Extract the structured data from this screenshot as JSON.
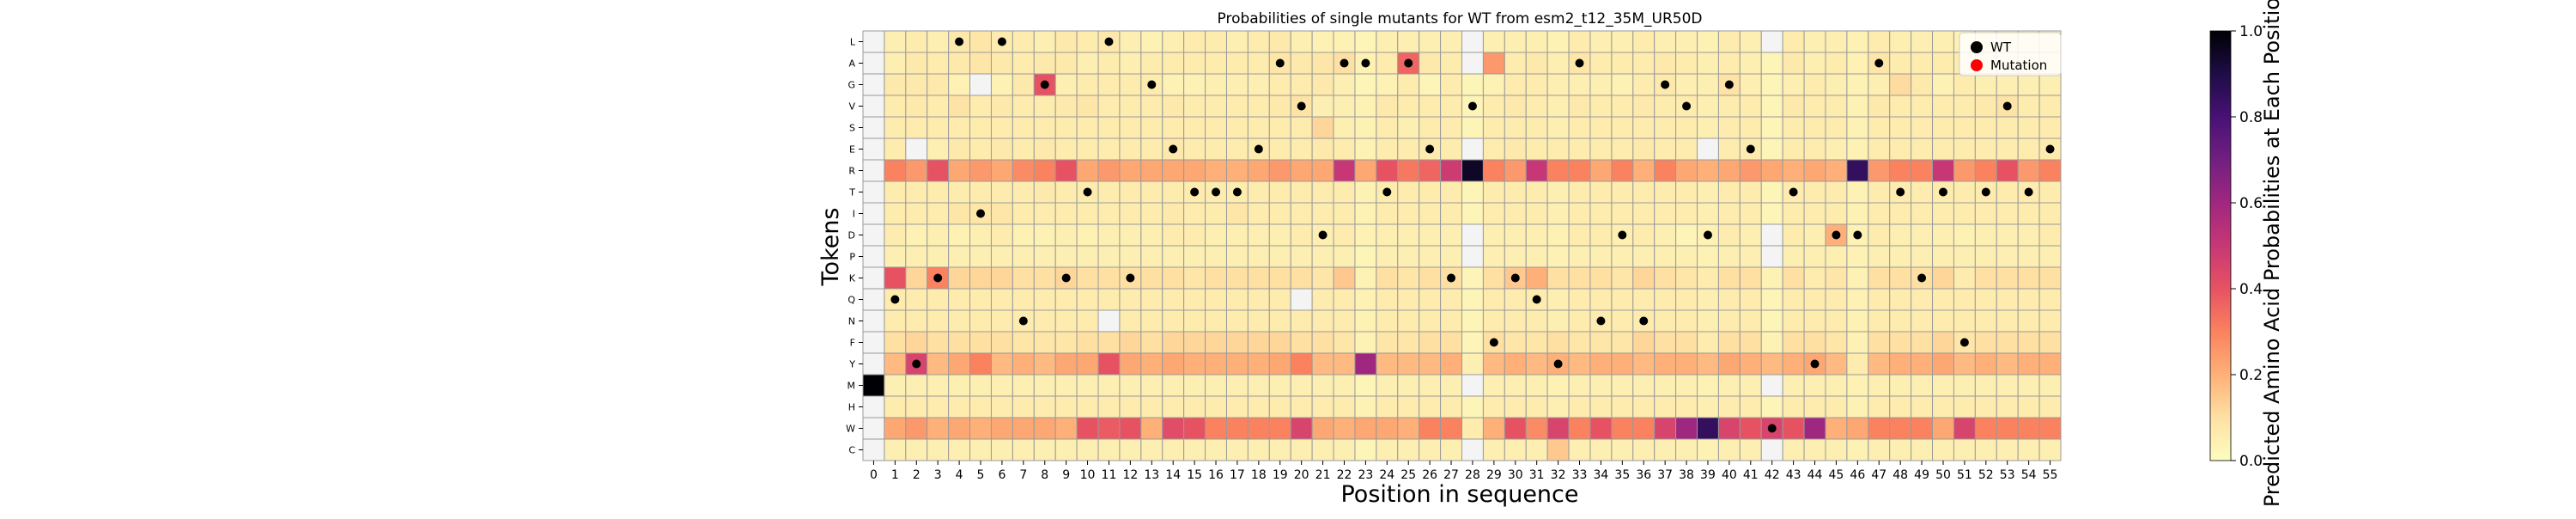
{
  "chart_data": {
    "type": "heatmap",
    "title": "Probabilities of single mutants for WT from esm2_t12_35M_UR50D",
    "xlabel": "Position in sequence",
    "ylabel": "Tokens",
    "x": [
      0,
      1,
      2,
      3,
      4,
      5,
      6,
      7,
      8,
      9,
      10,
      11,
      12,
      13,
      14,
      15,
      16,
      17,
      18,
      19,
      20,
      21,
      22,
      23,
      24,
      25,
      26,
      27,
      28,
      29,
      30,
      31,
      32,
      33,
      34,
      35,
      36,
      37,
      38,
      39,
      40,
      41,
      42,
      43,
      44,
      45,
      46,
      47,
      48,
      49,
      50,
      51,
      52,
      53,
      54,
      55
    ],
    "tokens": [
      "L",
      "A",
      "G",
      "V",
      "S",
      "E",
      "R",
      "T",
      "I",
      "D",
      "P",
      "K",
      "Q",
      "N",
      "F",
      "Y",
      "M",
      "H",
      "W",
      "C"
    ],
    "wild_type": [
      "M",
      "Q",
      "Y",
      "K",
      "L",
      "I",
      "L",
      "N",
      "G",
      "K",
      "T",
      "L",
      "K",
      "G",
      "E",
      "T",
      "T",
      "T",
      "E",
      "A",
      "V",
      "D",
      "A",
      "A",
      "T",
      "A",
      "E",
      "K",
      "V",
      "F",
      "K",
      "Q",
      "Y",
      "A",
      "N",
      "D",
      "N",
      "G",
      "V",
      "D",
      "G",
      "E",
      "W",
      "T",
      "Y",
      "D",
      "D",
      "A",
      "T",
      "K",
      "T",
      "F",
      "T",
      "V",
      "T",
      "E"
    ],
    "mutations": [],
    "legend": {
      "wt": "WT",
      "mutation": "Mutation",
      "position": "top-right"
    },
    "colorbar": {
      "label": "Predicted Amino Acid Probabilities at Each Position",
      "min": 0.0,
      "max": 1.0,
      "ticks": [
        "0.0",
        "0.2",
        "0.4",
        "0.6",
        "0.8",
        "1.0"
      ]
    },
    "colors": {
      "wt_marker": "#000000",
      "mutation_marker": "#ff0000",
      "cell_border": "#9a9a9a",
      "near_zero": "#f4f4f4"
    },
    "grid": true,
    "values": [
      [
        0.01,
        0.05,
        0.06,
        0.05,
        0.07,
        0.08,
        0.06,
        0.06,
        0.05,
        0.07,
        0.06,
        0.07,
        0.05,
        0.04,
        0.05,
        0.06,
        0.06,
        0.05,
        0.06,
        0.07,
        0.05,
        0.04,
        0.04,
        0.03,
        0.05,
        0.05,
        0.05,
        0.05,
        0.02,
        0.05,
        0.05,
        0.05,
        0.04,
        0.06,
        0.05,
        0.05,
        0.06,
        0.05,
        0.05,
        0.04,
        0.06,
        0.05,
        0.02,
        0.06,
        0.05,
        0.05,
        0.04,
        0.06,
        0.05,
        0.05,
        0.05,
        0.04,
        0.05,
        0.06,
        0.06,
        0.05
      ],
      [
        0.01,
        0.05,
        0.07,
        0.06,
        0.07,
        0.08,
        0.07,
        0.06,
        0.07,
        0.07,
        0.05,
        0.06,
        0.05,
        0.06,
        0.06,
        0.06,
        0.06,
        0.06,
        0.06,
        0.08,
        0.07,
        0.08,
        0.1,
        0.04,
        0.06,
        0.36,
        0.07,
        0.06,
        0.02,
        0.25,
        0.06,
        0.07,
        0.05,
        0.08,
        0.06,
        0.06,
        0.06,
        0.07,
        0.06,
        0.05,
        0.06,
        0.05,
        0.03,
        0.07,
        0.05,
        0.06,
        0.04,
        0.08,
        0.06,
        0.06,
        0.06,
        0.06,
        0.06,
        0.06,
        0.07,
        0.05
      ],
      [
        0.01,
        0.07,
        0.07,
        0.07,
        0.04,
        0.02,
        0.04,
        0.07,
        0.4,
        0.05,
        0.06,
        0.06,
        0.06,
        0.06,
        0.04,
        0.04,
        0.05,
        0.05,
        0.05,
        0.06,
        0.06,
        0.07,
        0.05,
        0.03,
        0.04,
        0.06,
        0.03,
        0.06,
        0.03,
        0.04,
        0.06,
        0.06,
        0.05,
        0.05,
        0.05,
        0.04,
        0.06,
        0.07,
        0.05,
        0.05,
        0.09,
        0.05,
        0.03,
        0.05,
        0.06,
        0.05,
        0.04,
        0.05,
        0.11,
        0.07,
        0.04,
        0.06,
        0.05,
        0.05,
        0.05,
        0.05
      ],
      [
        0.01,
        0.06,
        0.07,
        0.06,
        0.09,
        0.06,
        0.07,
        0.06,
        0.06,
        0.07,
        0.08,
        0.06,
        0.06,
        0.06,
        0.07,
        0.06,
        0.06,
        0.06,
        0.06,
        0.07,
        0.09,
        0.05,
        0.05,
        0.04,
        0.07,
        0.06,
        0.06,
        0.06,
        0.03,
        0.06,
        0.07,
        0.06,
        0.05,
        0.07,
        0.06,
        0.06,
        0.07,
        0.06,
        0.06,
        0.05,
        0.06,
        0.06,
        0.03,
        0.07,
        0.06,
        0.06,
        0.04,
        0.07,
        0.06,
        0.06,
        0.06,
        0.06,
        0.07,
        0.09,
        0.06,
        0.06
      ],
      [
        0.01,
        0.06,
        0.06,
        0.06,
        0.06,
        0.06,
        0.06,
        0.06,
        0.06,
        0.06,
        0.06,
        0.06,
        0.06,
        0.06,
        0.06,
        0.06,
        0.06,
        0.06,
        0.06,
        0.06,
        0.06,
        0.12,
        0.05,
        0.04,
        0.06,
        0.05,
        0.06,
        0.06,
        0.03,
        0.06,
        0.06,
        0.06,
        0.05,
        0.06,
        0.06,
        0.06,
        0.06,
        0.06,
        0.06,
        0.05,
        0.06,
        0.06,
        0.03,
        0.06,
        0.06,
        0.06,
        0.04,
        0.06,
        0.06,
        0.06,
        0.06,
        0.06,
        0.06,
        0.06,
        0.06,
        0.06
      ],
      [
        0.01,
        0.06,
        0.02,
        0.05,
        0.07,
        0.06,
        0.07,
        0.06,
        0.07,
        0.06,
        0.06,
        0.06,
        0.06,
        0.06,
        0.07,
        0.06,
        0.06,
        0.06,
        0.06,
        0.06,
        0.06,
        0.07,
        0.06,
        0.04,
        0.06,
        0.06,
        0.06,
        0.06,
        0.02,
        0.06,
        0.07,
        0.06,
        0.06,
        0.06,
        0.06,
        0.06,
        0.07,
        0.06,
        0.06,
        0.02,
        0.06,
        0.06,
        0.03,
        0.06,
        0.06,
        0.05,
        0.04,
        0.06,
        0.06,
        0.06,
        0.06,
        0.06,
        0.06,
        0.06,
        0.06,
        0.06
      ],
      [
        0.01,
        0.3,
        0.25,
        0.4,
        0.22,
        0.25,
        0.22,
        0.28,
        0.3,
        0.4,
        0.22,
        0.25,
        0.22,
        0.22,
        0.22,
        0.22,
        0.2,
        0.2,
        0.22,
        0.25,
        0.22,
        0.22,
        0.5,
        0.22,
        0.4,
        0.32,
        0.36,
        0.48,
        0.95,
        0.3,
        0.25,
        0.5,
        0.3,
        0.3,
        0.22,
        0.3,
        0.2,
        0.3,
        0.22,
        0.2,
        0.22,
        0.25,
        0.22,
        0.2,
        0.22,
        0.2,
        0.85,
        0.25,
        0.3,
        0.3,
        0.5,
        0.25,
        0.3,
        0.4,
        0.25,
        0.3
      ],
      [
        0.01,
        0.06,
        0.06,
        0.06,
        0.06,
        0.06,
        0.06,
        0.06,
        0.07,
        0.06,
        0.06,
        0.06,
        0.06,
        0.06,
        0.06,
        0.06,
        0.06,
        0.06,
        0.06,
        0.06,
        0.06,
        0.06,
        0.06,
        0.04,
        0.06,
        0.06,
        0.06,
        0.06,
        0.03,
        0.06,
        0.06,
        0.06,
        0.05,
        0.06,
        0.06,
        0.06,
        0.06,
        0.06,
        0.06,
        0.05,
        0.06,
        0.06,
        0.03,
        0.06,
        0.06,
        0.06,
        0.04,
        0.06,
        0.06,
        0.06,
        0.06,
        0.06,
        0.06,
        0.06,
        0.06,
        0.06
      ],
      [
        0.01,
        0.06,
        0.06,
        0.06,
        0.08,
        0.08,
        0.08,
        0.06,
        0.06,
        0.06,
        0.06,
        0.06,
        0.06,
        0.06,
        0.07,
        0.06,
        0.06,
        0.08,
        0.06,
        0.06,
        0.06,
        0.06,
        0.06,
        0.04,
        0.06,
        0.06,
        0.06,
        0.06,
        0.03,
        0.06,
        0.06,
        0.06,
        0.05,
        0.06,
        0.06,
        0.06,
        0.06,
        0.06,
        0.06,
        0.05,
        0.06,
        0.06,
        0.03,
        0.06,
        0.06,
        0.06,
        0.04,
        0.06,
        0.06,
        0.06,
        0.06,
        0.06,
        0.06,
        0.06,
        0.06,
        0.06
      ],
      [
        0.01,
        0.06,
        0.04,
        0.05,
        0.04,
        0.05,
        0.06,
        0.04,
        0.04,
        0.05,
        0.04,
        0.05,
        0.05,
        0.05,
        0.06,
        0.06,
        0.05,
        0.05,
        0.05,
        0.05,
        0.06,
        0.05,
        0.06,
        0.04,
        0.05,
        0.05,
        0.05,
        0.05,
        0.02,
        0.05,
        0.05,
        0.05,
        0.04,
        0.06,
        0.06,
        0.05,
        0.06,
        0.05,
        0.03,
        0.04,
        0.06,
        0.05,
        0.02,
        0.06,
        0.05,
        0.2,
        0.04,
        0.06,
        0.05,
        0.05,
        0.05,
        0.04,
        0.05,
        0.05,
        0.05,
        0.06
      ],
      [
        0.01,
        0.05,
        0.05,
        0.05,
        0.05,
        0.05,
        0.05,
        0.05,
        0.05,
        0.05,
        0.05,
        0.05,
        0.05,
        0.05,
        0.05,
        0.05,
        0.05,
        0.05,
        0.05,
        0.05,
        0.05,
        0.05,
        0.05,
        0.03,
        0.05,
        0.05,
        0.05,
        0.05,
        0.02,
        0.05,
        0.05,
        0.05,
        0.04,
        0.05,
        0.05,
        0.05,
        0.05,
        0.05,
        0.05,
        0.04,
        0.05,
        0.05,
        0.02,
        0.05,
        0.05,
        0.05,
        0.04,
        0.05,
        0.05,
        0.05,
        0.05,
        0.05,
        0.05,
        0.05,
        0.05,
        0.05
      ],
      [
        0.01,
        0.4,
        0.12,
        0.3,
        0.12,
        0.12,
        0.12,
        0.1,
        0.1,
        0.12,
        0.1,
        0.1,
        0.1,
        0.1,
        0.1,
        0.08,
        0.1,
        0.1,
        0.1,
        0.1,
        0.1,
        0.08,
        0.15,
        0.04,
        0.1,
        0.08,
        0.1,
        0.1,
        0.03,
        0.1,
        0.15,
        0.2,
        0.1,
        0.1,
        0.1,
        0.08,
        0.12,
        0.1,
        0.08,
        0.06,
        0.1,
        0.1,
        0.04,
        0.1,
        0.06,
        0.08,
        0.04,
        0.1,
        0.1,
        0.1,
        0.12,
        0.06,
        0.1,
        0.1,
        0.1,
        0.1
      ],
      [
        0.01,
        0.06,
        0.06,
        0.06,
        0.06,
        0.06,
        0.06,
        0.06,
        0.06,
        0.06,
        0.06,
        0.06,
        0.06,
        0.06,
        0.06,
        0.06,
        0.06,
        0.06,
        0.06,
        0.06,
        0.02,
        0.06,
        0.06,
        0.04,
        0.06,
        0.06,
        0.06,
        0.06,
        0.03,
        0.06,
        0.06,
        0.06,
        0.05,
        0.06,
        0.06,
        0.06,
        0.06,
        0.06,
        0.06,
        0.05,
        0.06,
        0.06,
        0.03,
        0.06,
        0.06,
        0.06,
        0.04,
        0.06,
        0.06,
        0.06,
        0.06,
        0.06,
        0.06,
        0.06,
        0.06,
        0.06
      ],
      [
        0.01,
        0.06,
        0.06,
        0.06,
        0.06,
        0.06,
        0.06,
        0.06,
        0.06,
        0.06,
        0.06,
        0.02,
        0.06,
        0.06,
        0.06,
        0.06,
        0.06,
        0.06,
        0.06,
        0.06,
        0.06,
        0.06,
        0.06,
        0.04,
        0.06,
        0.06,
        0.06,
        0.06,
        0.03,
        0.06,
        0.06,
        0.06,
        0.05,
        0.06,
        0.06,
        0.06,
        0.06,
        0.06,
        0.06,
        0.05,
        0.06,
        0.06,
        0.03,
        0.06,
        0.06,
        0.06,
        0.04,
        0.06,
        0.06,
        0.06,
        0.06,
        0.06,
        0.06,
        0.06,
        0.06,
        0.06
      ],
      [
        0.01,
        0.1,
        0.12,
        0.1,
        0.1,
        0.1,
        0.1,
        0.08,
        0.08,
        0.08,
        0.1,
        0.1,
        0.12,
        0.1,
        0.12,
        0.12,
        0.12,
        0.12,
        0.12,
        0.12,
        0.1,
        0.1,
        0.08,
        0.04,
        0.08,
        0.08,
        0.1,
        0.1,
        0.03,
        0.1,
        0.08,
        0.08,
        0.1,
        0.08,
        0.08,
        0.08,
        0.12,
        0.1,
        0.1,
        0.06,
        0.1,
        0.1,
        0.04,
        0.1,
        0.1,
        0.08,
        0.04,
        0.1,
        0.1,
        0.1,
        0.12,
        0.08,
        0.1,
        0.1,
        0.1,
        0.1
      ],
      [
        0.01,
        0.18,
        0.45,
        0.18,
        0.22,
        0.3,
        0.18,
        0.2,
        0.18,
        0.22,
        0.22,
        0.4,
        0.22,
        0.2,
        0.22,
        0.2,
        0.2,
        0.2,
        0.2,
        0.22,
        0.3,
        0.18,
        0.18,
        0.6,
        0.18,
        0.18,
        0.18,
        0.2,
        0.05,
        0.18,
        0.2,
        0.18,
        0.2,
        0.18,
        0.2,
        0.2,
        0.18,
        0.2,
        0.2,
        0.18,
        0.22,
        0.2,
        0.18,
        0.2,
        0.22,
        0.18,
        0.06,
        0.18,
        0.2,
        0.2,
        0.22,
        0.18,
        0.2,
        0.18,
        0.2,
        0.2
      ],
      [
        1.0,
        0.05,
        0.05,
        0.05,
        0.05,
        0.05,
        0.05,
        0.05,
        0.05,
        0.05,
        0.05,
        0.05,
        0.05,
        0.05,
        0.05,
        0.05,
        0.05,
        0.05,
        0.05,
        0.05,
        0.05,
        0.05,
        0.05,
        0.03,
        0.05,
        0.05,
        0.05,
        0.05,
        0.02,
        0.05,
        0.05,
        0.05,
        0.04,
        0.05,
        0.05,
        0.05,
        0.05,
        0.05,
        0.05,
        0.04,
        0.05,
        0.05,
        0.02,
        0.05,
        0.05,
        0.05,
        0.04,
        0.05,
        0.05,
        0.05,
        0.05,
        0.05,
        0.05,
        0.05,
        0.05,
        0.05
      ],
      [
        0.01,
        0.06,
        0.06,
        0.06,
        0.06,
        0.06,
        0.06,
        0.06,
        0.06,
        0.06,
        0.06,
        0.06,
        0.06,
        0.06,
        0.06,
        0.06,
        0.06,
        0.06,
        0.06,
        0.06,
        0.06,
        0.06,
        0.06,
        0.04,
        0.06,
        0.06,
        0.06,
        0.06,
        0.03,
        0.06,
        0.06,
        0.06,
        0.05,
        0.06,
        0.06,
        0.06,
        0.06,
        0.06,
        0.06,
        0.05,
        0.06,
        0.06,
        0.03,
        0.06,
        0.06,
        0.06,
        0.04,
        0.06,
        0.06,
        0.06,
        0.06,
        0.06,
        0.06,
        0.06,
        0.06,
        0.06
      ],
      [
        0.01,
        0.22,
        0.25,
        0.2,
        0.22,
        0.2,
        0.22,
        0.22,
        0.22,
        0.2,
        0.4,
        0.38,
        0.4,
        0.2,
        0.42,
        0.4,
        0.3,
        0.3,
        0.3,
        0.3,
        0.45,
        0.22,
        0.2,
        0.22,
        0.22,
        0.2,
        0.3,
        0.3,
        0.06,
        0.2,
        0.4,
        0.28,
        0.45,
        0.3,
        0.4,
        0.3,
        0.3,
        0.45,
        0.6,
        0.85,
        0.45,
        0.4,
        0.45,
        0.4,
        0.6,
        0.2,
        0.22,
        0.3,
        0.3,
        0.3,
        0.22,
        0.45,
        0.3,
        0.3,
        0.3,
        0.3
      ],
      [
        0.01,
        0.05,
        0.05,
        0.05,
        0.05,
        0.05,
        0.05,
        0.05,
        0.05,
        0.05,
        0.05,
        0.05,
        0.05,
        0.05,
        0.05,
        0.05,
        0.05,
        0.05,
        0.05,
        0.05,
        0.05,
        0.05,
        0.05,
        0.03,
        0.05,
        0.05,
        0.05,
        0.05,
        0.02,
        0.05,
        0.05,
        0.05,
        0.15,
        0.05,
        0.05,
        0.05,
        0.05,
        0.05,
        0.05,
        0.04,
        0.05,
        0.05,
        0.02,
        0.05,
        0.05,
        0.05,
        0.04,
        0.05,
        0.05,
        0.05,
        0.05,
        0.05,
        0.05,
        0.05,
        0.05,
        0.05
      ]
    ]
  }
}
